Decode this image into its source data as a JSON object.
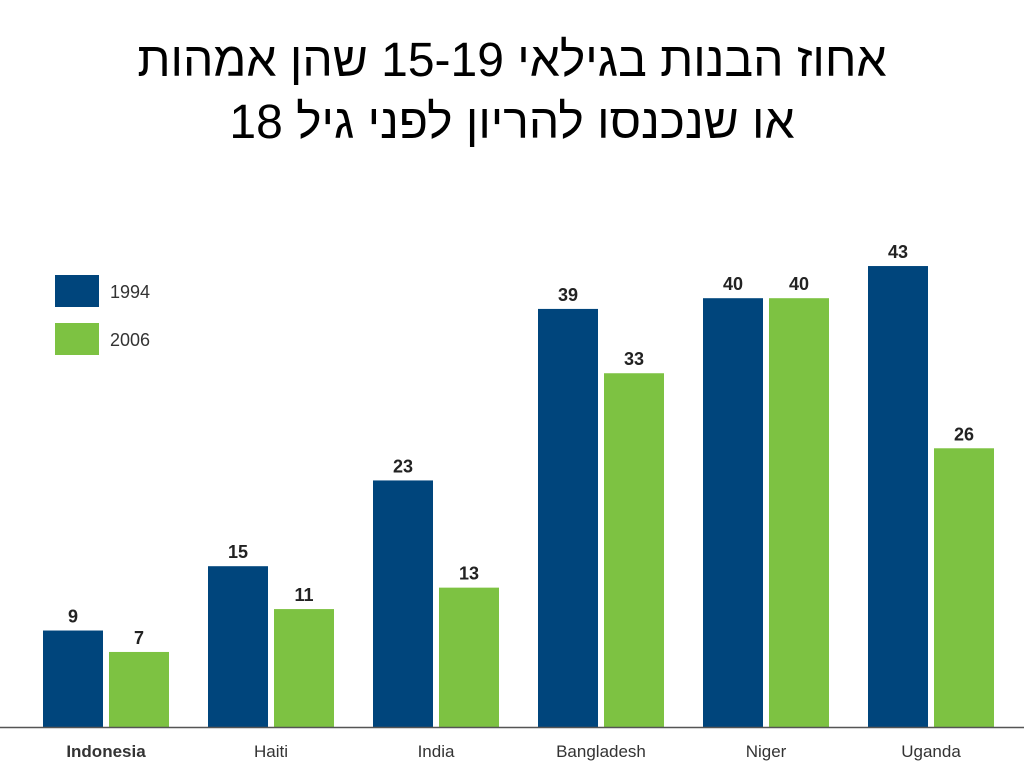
{
  "slide": {
    "title_line1": "אחוז הבנות בגילאי 15-19 שהן אמהות",
    "title_line2": "או שנכנסו להריון לפני גיל 18"
  },
  "chart_data": {
    "type": "bar",
    "title": "אחוז הבנות בגילאי 15-19 שהן אמהות או שנכנסו להריון לפני גיל 18",
    "xlabel": "",
    "ylabel": "",
    "categories": [
      "Indonesia",
      "Haiti",
      "India",
      "Bangladesh",
      "Niger",
      "Uganda"
    ],
    "series": [
      {
        "name": "1994",
        "values": [
          9,
          15,
          23,
          39,
          40,
          43
        ],
        "color": "#00457c"
      },
      {
        "name": "2006",
        "values": [
          7,
          11,
          13,
          33,
          40,
          26
        ],
        "color": "#7dc242"
      }
    ],
    "ylim": [
      0,
      45
    ],
    "grid": false,
    "legend": "top-left",
    "data_labels": true,
    "axis_color": "#555555",
    "label_color": "#333333",
    "first_category_bold": true
  }
}
